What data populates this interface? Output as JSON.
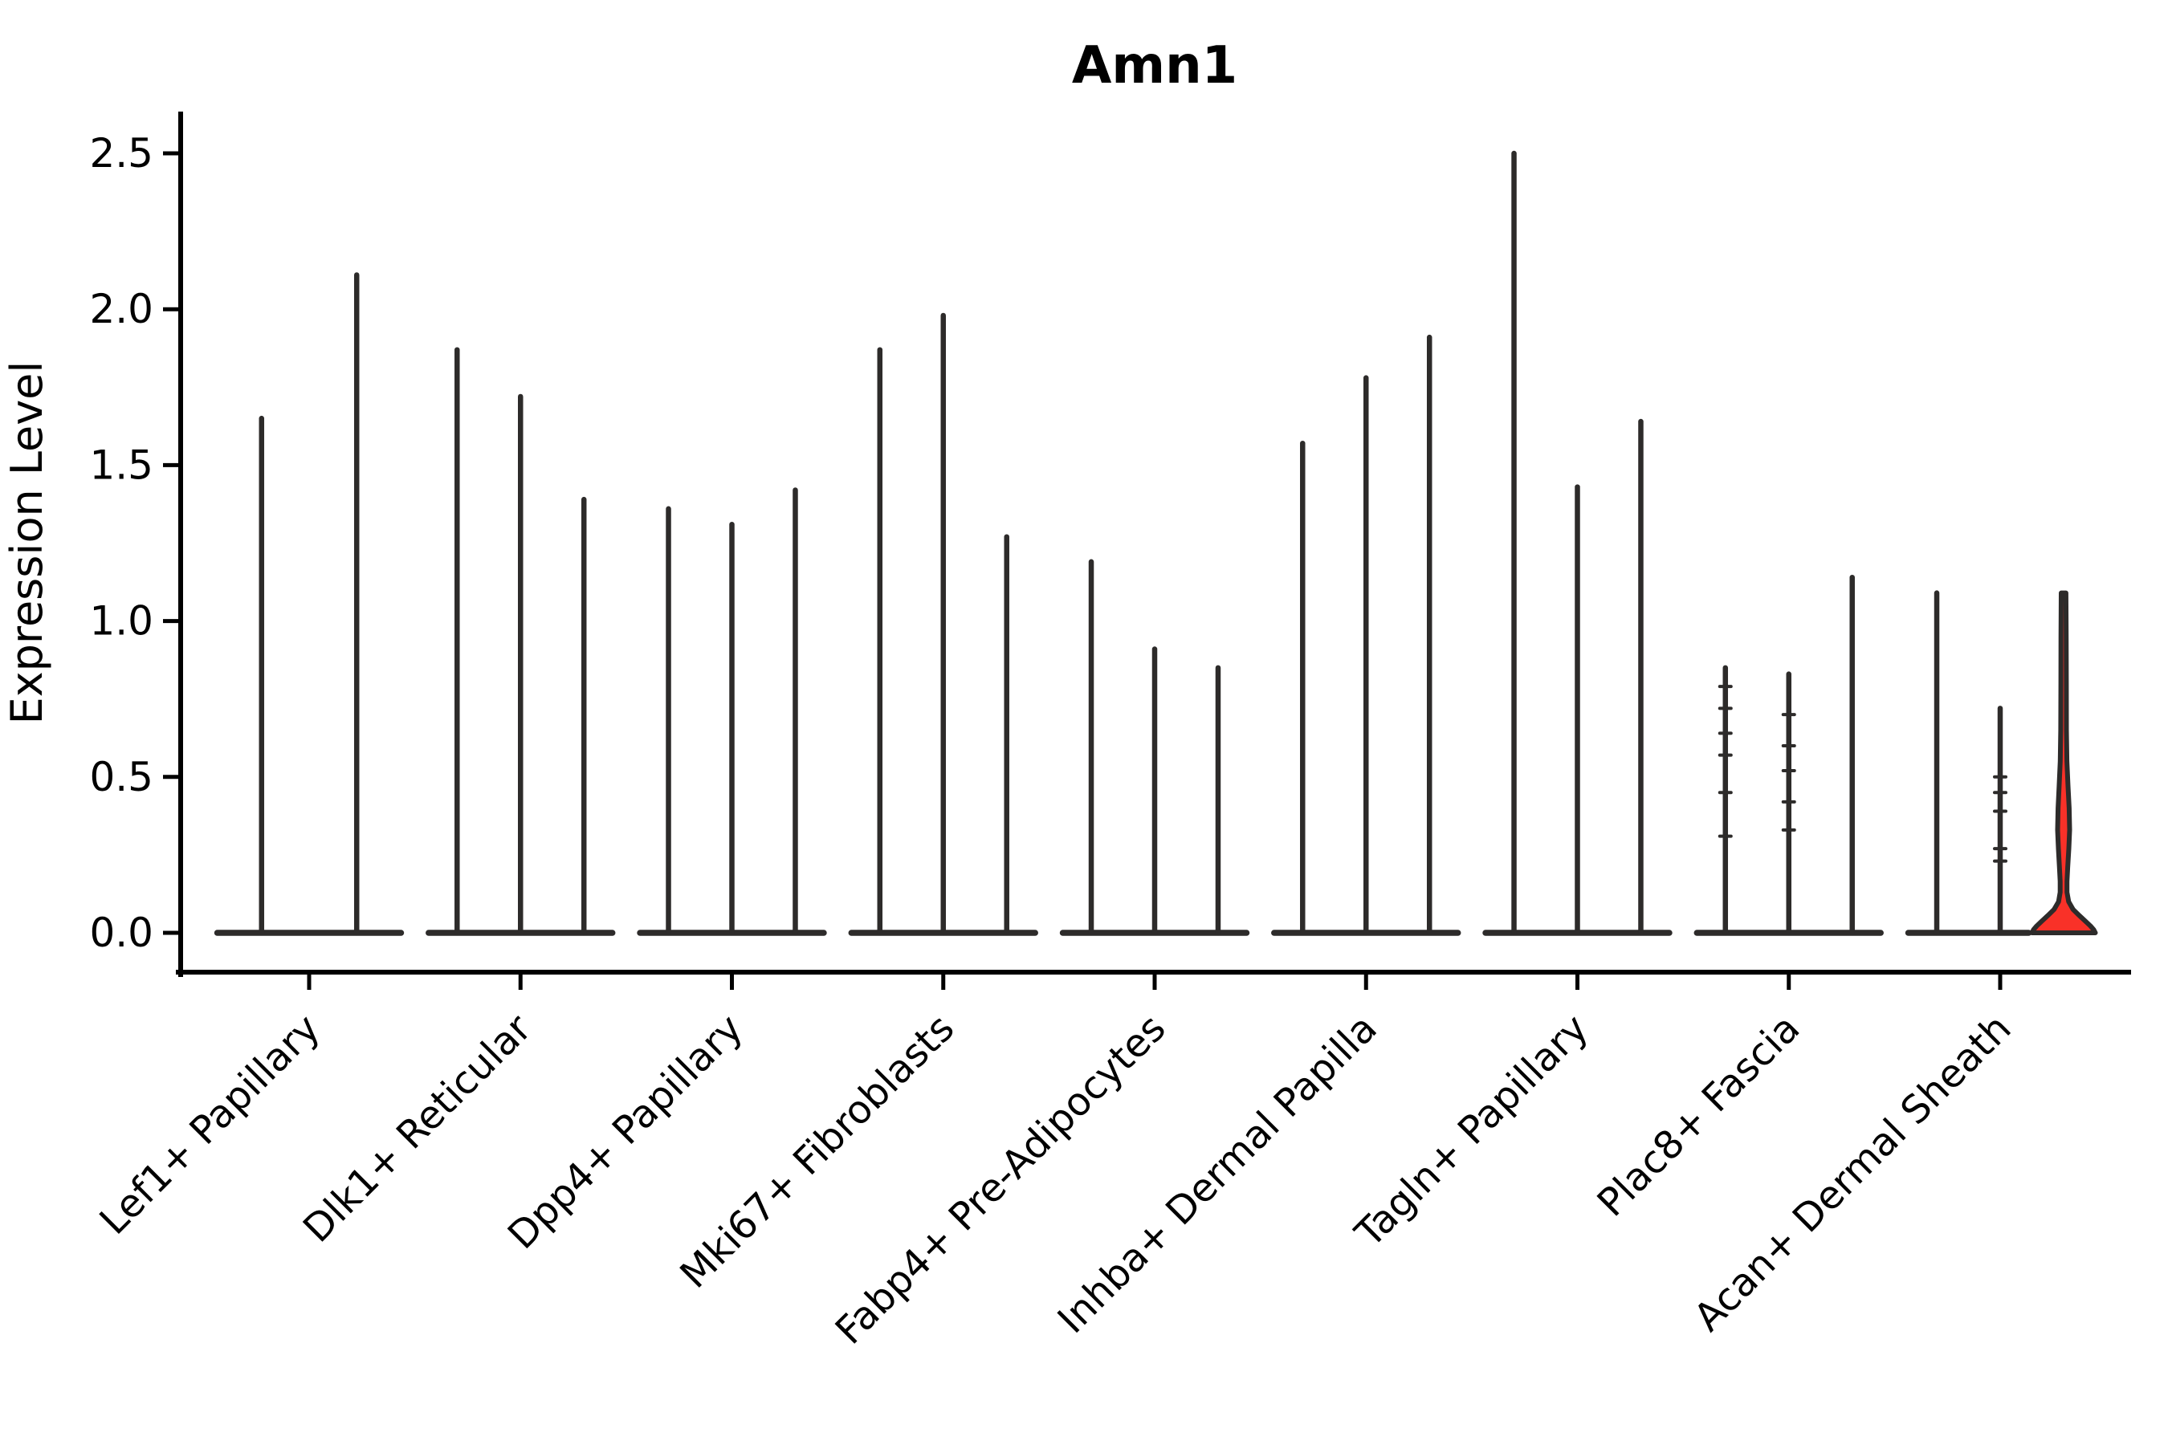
{
  "title": "Amn1",
  "chart_data": {
    "type": "violin",
    "title": "Amn1",
    "xlabel": "",
    "ylabel": "Expression Level",
    "ylim": [
      -0.13,
      2.63
    ],
    "grid": false,
    "legend_position": "none",
    "yticks": [
      {
        "label": "0.0",
        "value": 0.0
      },
      {
        "label": "0.5",
        "value": 0.5
      },
      {
        "label": "1.0",
        "value": 1.0
      },
      {
        "label": "1.5",
        "value": 1.5
      },
      {
        "label": "2.0",
        "value": 2.0
      },
      {
        "label": "2.5",
        "value": 2.5
      }
    ],
    "categories": [
      "Lef1+ Papillary",
      "Dlk1+ Reticular",
      "Dpp4+ Papillary",
      "Mki67+ Fibroblasts",
      "Fabp4+ Pre-Adipocytes",
      "Inhba+ Dermal Papilla",
      "Tagln+ Papillary",
      "Plac8+ Fascia",
      "Acan+ Dermal Sheath"
    ],
    "groups": [
      {
        "category": "Lef1+ Papillary",
        "violins": [
          {
            "peak": 1.65
          },
          {
            "peak": 2.11
          }
        ]
      },
      {
        "category": "Dlk1+ Reticular",
        "violins": [
          {
            "peak": 1.87
          },
          {
            "peak": 1.72
          },
          {
            "peak": 1.39
          }
        ]
      },
      {
        "category": "Dpp4+ Papillary",
        "violins": [
          {
            "peak": 1.36
          },
          {
            "peak": 1.31
          },
          {
            "peak": 1.42
          }
        ]
      },
      {
        "category": "Mki67+ Fibroblasts",
        "violins": [
          {
            "peak": 1.87
          },
          {
            "peak": 1.98
          },
          {
            "peak": 1.27
          }
        ]
      },
      {
        "category": "Fabp4+ Pre-Adipocytes",
        "violins": [
          {
            "peak": 1.19
          },
          {
            "peak": 0.91
          },
          {
            "peak": 0.85
          }
        ]
      },
      {
        "category": "Inhba+ Dermal Papilla",
        "violins": [
          {
            "peak": 1.57
          },
          {
            "peak": 1.78
          },
          {
            "peak": 1.91
          }
        ]
      },
      {
        "category": "Tagln+ Papillary",
        "violins": [
          {
            "peak": 2.5
          },
          {
            "peak": 1.43
          },
          {
            "peak": 1.64
          }
        ]
      },
      {
        "category": "Plac8+ Fascia",
        "violins": [
          {
            "peak": 0.85,
            "marks": [
              0.31,
              0.45,
              0.57,
              0.64,
              0.72,
              0.79
            ]
          },
          {
            "peak": 0.83,
            "marks": [
              0.33,
              0.42,
              0.52,
              0.6,
              0.7
            ]
          },
          {
            "peak": 1.14
          }
        ]
      },
      {
        "category": "Acan+ Dermal Sheath",
        "violins": [
          {
            "peak": 1.09
          },
          {
            "peak": 0.72,
            "marks": [
              0.23,
              0.27,
              0.39,
              0.45,
              0.5
            ]
          },
          {
            "peak": 1.09,
            "highlight": true,
            "profile": [
              [
                1.09,
                0.075
              ],
              [
                0.95,
                0.082
              ],
              [
                0.8,
                0.086
              ],
              [
                0.65,
                0.09
              ],
              [
                0.55,
                0.105
              ],
              [
                0.47,
                0.14
              ],
              [
                0.4,
                0.175
              ],
              [
                0.33,
                0.19
              ],
              [
                0.27,
                0.165
              ],
              [
                0.21,
                0.13
              ],
              [
                0.165,
                0.107
              ],
              [
                0.13,
                0.107
              ],
              [
                0.1,
                0.16
              ],
              [
                0.075,
                0.3
              ],
              [
                0.055,
                0.5
              ],
              [
                0.038,
                0.68
              ],
              [
                0.022,
                0.85
              ],
              [
                0.01,
                0.95
              ],
              [
                0.0,
                1.0
              ]
            ]
          }
        ]
      }
    ],
    "colors": {
      "highlight_fill": "#f93128",
      "violin_line": "#2d2b2a",
      "axis": "#000000"
    }
  }
}
